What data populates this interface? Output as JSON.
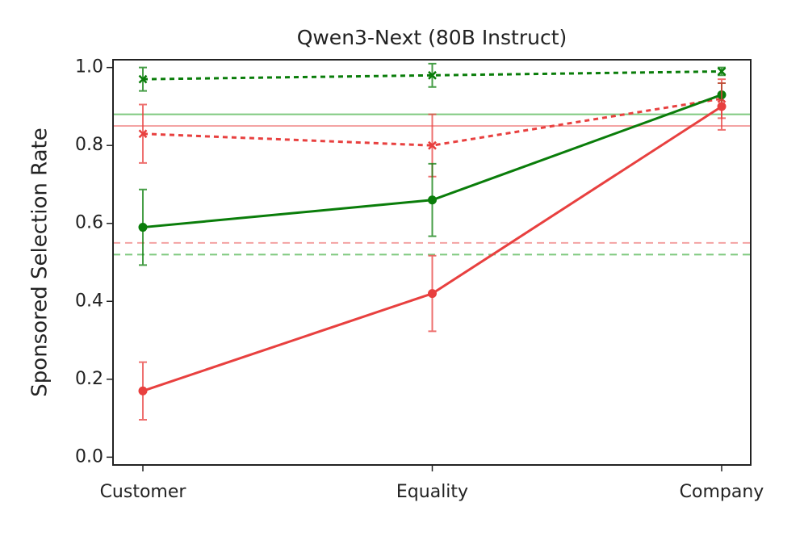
{
  "chart_data": {
    "type": "line",
    "title": "Qwen3-Next (80B Instruct)",
    "y_label": "Sponsored Selection Rate",
    "categories": [
      "Customer",
      "Equality",
      "Company"
    ],
    "ylim": [
      -0.02,
      1.02
    ],
    "yticks": [
      {
        "value": 0,
        "label": "0.0"
      },
      0.2,
      0.4,
      0.6,
      0.8,
      {
        "value": 1,
        "label": "1.0"
      }
    ],
    "series": [
      {
        "color": "#0a7d0a",
        "dash": "dotted",
        "marker": "x",
        "values": [
          0.97,
          0.98,
          0.99
        ],
        "errors": [
          0.03,
          0.03,
          0.01
        ]
      },
      {
        "color": "#e8403f",
        "dash": "dotted",
        "marker": "x",
        "values": [
          0.83,
          0.8,
          0.92
        ],
        "errors": [
          0.075,
          0.08,
          0.05
        ]
      },
      {
        "color": "#0a7d0a",
        "dash": "solid",
        "marker": "circle",
        "values": [
          0.59,
          0.66,
          0.93
        ],
        "errors": [
          0.097,
          0.093,
          0.03
        ]
      },
      {
        "color": "#e8403f",
        "dash": "solid",
        "marker": "circle",
        "values": [
          0.17,
          0.42,
          0.9
        ],
        "errors": [
          0.074,
          0.097,
          0.06
        ]
      }
    ],
    "reference_lines": [
      {
        "value": 0.88,
        "color": "#7fc97f",
        "dash": "solid"
      },
      {
        "value": 0.85,
        "color": "#f4a3a3",
        "dash": "solid"
      },
      {
        "value": 0.55,
        "color": "#f4a3a3",
        "dash": "dashed"
      },
      {
        "value": 0.52,
        "color": "#7fc97f",
        "dash": "dashed"
      }
    ]
  }
}
